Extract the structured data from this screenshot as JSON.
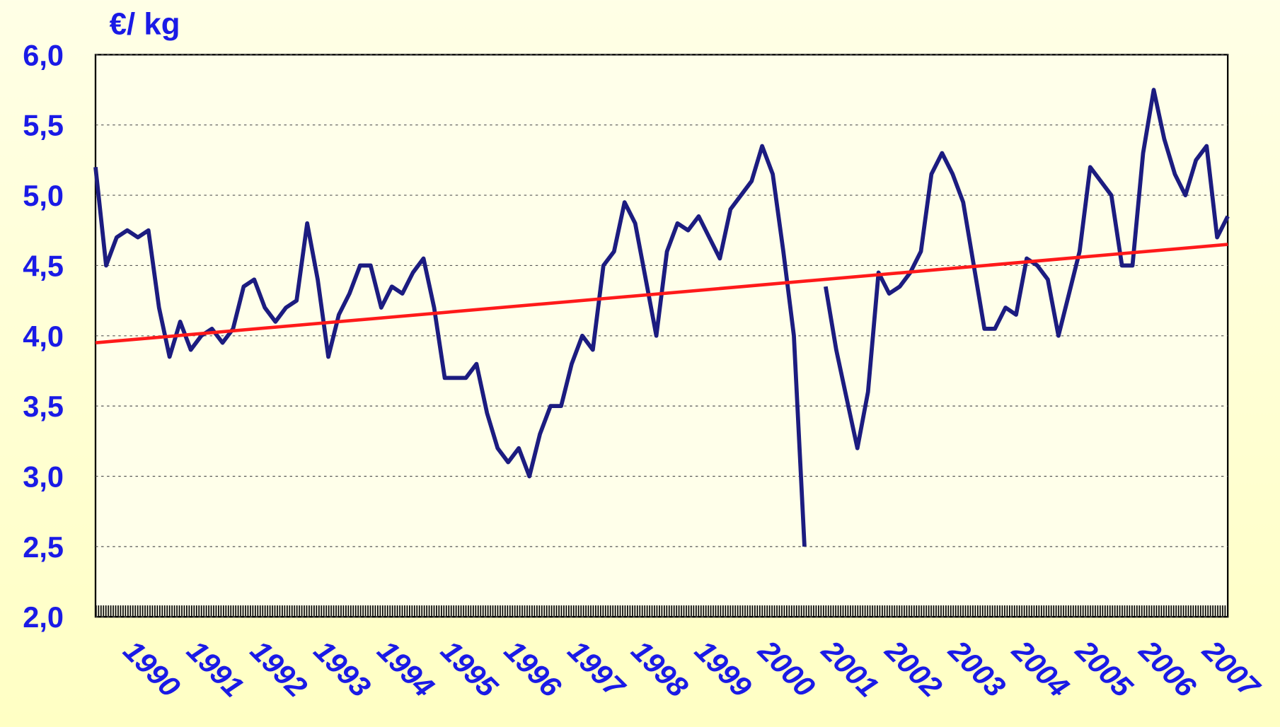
{
  "chart_data": {
    "type": "line",
    "y_label": "€/ kg",
    "categories": [
      "1990",
      null,
      null,
      null,
      null,
      null,
      "1991",
      null,
      null,
      null,
      null,
      null,
      "1992",
      null,
      null,
      null,
      null,
      null,
      "1993",
      null,
      null,
      null,
      null,
      null,
      "1994",
      null,
      null,
      null,
      null,
      null,
      "1995",
      null,
      null,
      null,
      null,
      null,
      "1996",
      null,
      null,
      null,
      null,
      null,
      "1997",
      null,
      null,
      null,
      null,
      null,
      "1998",
      null,
      null,
      null,
      null,
      null,
      "1999",
      null,
      null,
      null,
      null,
      null,
      "2000",
      null,
      null,
      null,
      null,
      null,
      "2001",
      null,
      null,
      null,
      null,
      null,
      "2002",
      null,
      null,
      null,
      null,
      null,
      "2003",
      null,
      null,
      null,
      null,
      null,
      "2004",
      null,
      null,
      null,
      null,
      null,
      "2005",
      null,
      null,
      null,
      null,
      null,
      "2006",
      null,
      null,
      null,
      null,
      null,
      "2007",
      null,
      null,
      null,
      null,
      null
    ],
    "series": [
      {
        "color": "#1c1c80",
        "values": [
          5.2,
          4.5,
          4.7,
          4.75,
          4.7,
          4.75,
          4.2,
          3.85,
          4.1,
          3.9,
          4.0,
          4.05,
          3.95,
          4.05,
          4.35,
          4.4,
          4.2,
          4.1,
          4.2,
          4.25,
          4.8,
          4.4,
          3.85,
          4.15,
          4.3,
          4.5,
          4.5,
          4.2,
          4.35,
          4.3,
          4.45,
          4.55,
          4.2,
          3.7,
          3.7,
          3.7,
          3.8,
          3.45,
          3.2,
          3.1,
          3.2,
          3.0,
          3.3,
          3.5,
          3.5,
          3.8,
          4.0,
          3.9,
          4.5,
          4.6,
          4.95,
          4.8,
          4.4,
          4.0,
          4.6,
          4.8,
          4.75,
          4.85,
          4.7,
          4.55,
          4.9,
          5.0,
          5.1,
          5.35,
          5.15,
          4.6,
          4.0,
          2.5,
          null,
          4.35,
          3.9,
          3.55,
          3.2,
          3.6,
          4.45,
          4.3,
          4.35,
          4.45,
          4.6,
          5.15,
          5.3,
          5.15,
          4.95,
          4.5,
          4.05,
          4.05,
          4.2,
          4.15,
          4.55,
          4.5,
          4.4,
          4.0,
          4.3,
          4.6,
          5.2,
          5.1,
          5.0,
          4.5,
          4.5,
          5.3,
          5.75,
          5.4,
          5.15,
          5.0,
          5.25,
          5.35,
          4.7,
          4.85
        ]
      }
    ],
    "trend": {
      "color": "#ff1a1a",
      "start": 3.95,
      "end": 4.65
    },
    "ylim": [
      2,
      6
    ],
    "yticks": [
      {
        "value": 2,
        "label": "2,0"
      },
      {
        "value": 2.5,
        "label": "2,5"
      },
      {
        "value": 3,
        "label": "3,0"
      },
      {
        "value": 3.5,
        "label": "3,5"
      },
      {
        "value": 4,
        "label": "4,0"
      },
      {
        "value": 4.5,
        "label": "4,5"
      },
      {
        "value": 5,
        "label": "5,0"
      },
      {
        "value": 5.5,
        "label": "5,5"
      },
      {
        "value": 6,
        "label": "6,0"
      }
    ],
    "grid": true
  }
}
